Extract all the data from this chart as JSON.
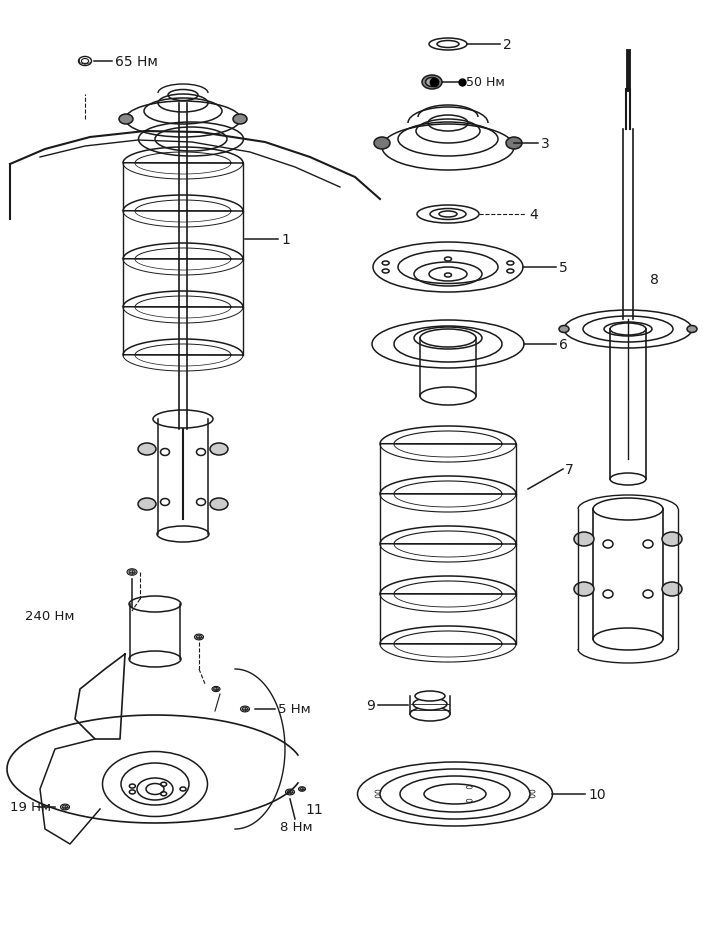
{
  "bg_color": "#ffffff",
  "line_color": "#1a1a1a",
  "fig_width": 7.23,
  "fig_height": 9.28,
  "dpi": 100,
  "labels": {
    "torque_65": "65 Нм",
    "torque_50": "50 Нм",
    "torque_240": "240 Нм",
    "torque_5": "5 Нм",
    "torque_19": "19 Нм",
    "torque_8": "8 Нм"
  }
}
